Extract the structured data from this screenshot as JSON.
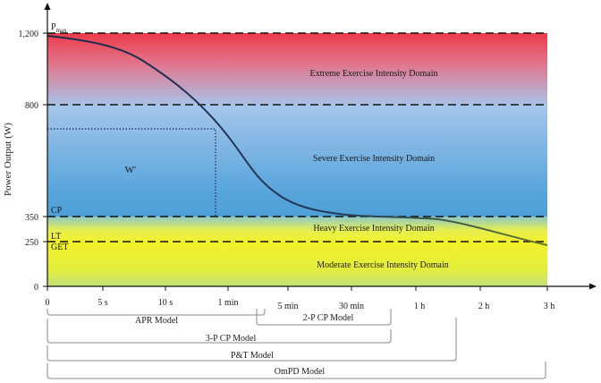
{
  "axes": {
    "ylabel": "Power Output (W)",
    "y_ticks": [
      "0",
      "250",
      "350",
      "800",
      "1,200"
    ],
    "x_ticks": [
      "0",
      "5 s",
      "10 s",
      "1 min",
      "5 min",
      "30 min",
      "1 h",
      "2 h",
      "3 h"
    ]
  },
  "thresholds": {
    "pmax_main": "P",
    "pmax_sub": "max",
    "cp": "CP",
    "lt": "LT",
    "get": "GET"
  },
  "domains": {
    "extreme": "Extreme Exercise Intensity Domain",
    "severe": "Severe Exercise Intensity Domain",
    "heavy": "Heavy Exercise Intensity Domain",
    "moderate": "Moderate Exercise Intensity Domain"
  },
  "w_prime": "W′",
  "models": {
    "apr": "APR Model",
    "two_p": "2-P CP Model",
    "three_p": "3-P CP Model",
    "pt": "P&T Model",
    "ompd": "OmPD Model"
  },
  "colors": {
    "extreme_top": "#ee3a4a",
    "extreme_bottom": "#a8c2e6",
    "severe_top": "#a6c6ea",
    "severe_bottom": "#4e9fd8",
    "heavy": "#f2f22c",
    "moderate_bottom": "#c2e27a",
    "curve_dark": "#1e2a4c",
    "curve_light": "#6a7a2e"
  }
}
